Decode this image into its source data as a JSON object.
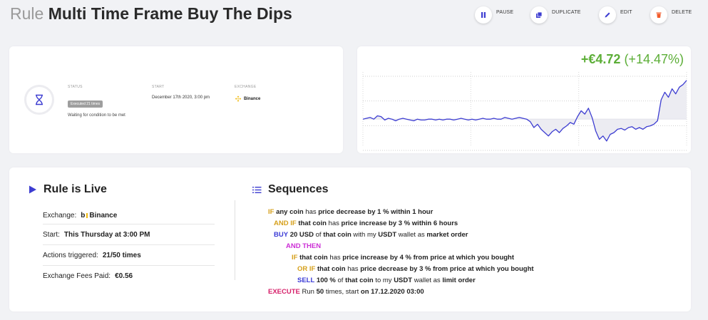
{
  "header": {
    "prefix": "Rule",
    "title": "Multi Time Frame Buy The Dips"
  },
  "actions": [
    {
      "label": "PAUSE",
      "icon": "pause-icon",
      "color": "#3d3dd1"
    },
    {
      "label": "DUPLICATE",
      "icon": "duplicate-icon",
      "color": "#3d3dd1"
    },
    {
      "label": "EDIT",
      "icon": "pencil-icon",
      "color": "#3d3dd1"
    },
    {
      "label": "DELETE",
      "icon": "trash-icon",
      "color": "#f25b2a"
    }
  ],
  "status_card": {
    "status_label": "STATUS",
    "badge": "Executed 21 times",
    "sub": "Waiting for condition to be met",
    "start_label": "START",
    "start_value": "December 17th 2020, 3:00 pm",
    "exchange_label": "EXCHANGE",
    "exchange_value": "Binance"
  },
  "pl": {
    "abs": "+€4.72",
    "pct": "(+14.47%)"
  },
  "chart_data": {
    "type": "line",
    "baseline": 0,
    "x": [
      0,
      1,
      2,
      3,
      4,
      5,
      6,
      7,
      8,
      9,
      10,
      11,
      12,
      13,
      14,
      15,
      16,
      17,
      18,
      19,
      20,
      21,
      22,
      23,
      24,
      25,
      26,
      27,
      28,
      29,
      30,
      31,
      32,
      33,
      34,
      35,
      36,
      37,
      38,
      39,
      40,
      41,
      42,
      43,
      44,
      45,
      46,
      47,
      48,
      49,
      50,
      51,
      52,
      53,
      54,
      55,
      56,
      57,
      58,
      59,
      60,
      61,
      62,
      63,
      64,
      65,
      66,
      67,
      68,
      69,
      70,
      71,
      72,
      73,
      74,
      75,
      76,
      77,
      78,
      79,
      80,
      81,
      82,
      83,
      84,
      85,
      86,
      87,
      88,
      89
    ],
    "values": [
      0,
      0.1,
      0.2,
      0,
      0.4,
      0.3,
      -0.1,
      0.1,
      0,
      -0.2,
      0,
      0.1,
      0,
      -0.1,
      -0.2,
      0,
      -0.1,
      -0.1,
      0,
      0,
      -0.1,
      0,
      -0.1,
      0,
      0,
      -0.1,
      0,
      0.1,
      0,
      -0.1,
      0,
      -0.1,
      0,
      0.1,
      0,
      0,
      0.1,
      0,
      0,
      0.2,
      0.1,
      0,
      0.1,
      0.2,
      0.1,
      0,
      -0.3,
      -1.0,
      -0.6,
      -1.2,
      -1.6,
      -2.0,
      -1.5,
      -1.2,
      -1.6,
      -1.1,
      -0.8,
      -0.4,
      -0.6,
      0.3,
      1.0,
      0.6,
      1.3,
      0.2,
      -1.4,
      -2.4,
      -2.0,
      -2.6,
      -1.8,
      -1.6,
      -1.2,
      -1.1,
      -1.3,
      -1.0,
      -0.9,
      -1.2,
      -1.0,
      -1.2,
      -0.9,
      -0.8,
      -0.6,
      -0.2,
      2.3,
      3.2,
      2.6,
      3.6,
      3.0,
      3.8,
      4.1,
      4.6
    ],
    "ylim": [
      -3.2,
      5.6
    ]
  },
  "live": {
    "heading": "Rule is Live",
    "exchange_label": "Exchange:",
    "exchange_value": "Binance",
    "start_label": "Start:",
    "start_value": "This Thursday at 3:00 PM",
    "actions_label": "Actions triggered:",
    "actions_value": "21/50 times",
    "fees_label": "Exchange Fees Paid:",
    "fees_value": "€0.56"
  },
  "sequences": {
    "heading": "Sequences",
    "l1": {
      "kw": "IF",
      "a": "any coin",
      "b": "has",
      "c": "price decrease by 1 % within 1 hour"
    },
    "l2": {
      "kw": "AND IF",
      "a": "that coin",
      "b": "has",
      "c": "price increase by 3 % within 6 hours"
    },
    "l3": {
      "kw": "BUY",
      "a": "20 USD",
      "b": "of",
      "c": "that coin",
      "d": "with my",
      "e": "USDT",
      "f": "wallet as",
      "g": "market order"
    },
    "l4": {
      "kw": "AND THEN"
    },
    "l5": {
      "kw": "IF",
      "a": "that coin",
      "b": "has",
      "c": "price increase by 4 % from price at which you bought"
    },
    "l6": {
      "kw": "OR IF",
      "a": "that coin",
      "b": "has",
      "c": "price decrease by 3 % from price at which you bought"
    },
    "l7": {
      "kw": "SELL",
      "a": "100 %",
      "b": "of",
      "c": "that coin",
      "d": "to my",
      "e": "USDT",
      "f": "wallet as",
      "g": "limit order"
    },
    "l8": {
      "kw": "EXECUTE",
      "a": "Run",
      "b": "50",
      "c": "times, start",
      "d": "on 17.12.2020 03:00"
    }
  }
}
